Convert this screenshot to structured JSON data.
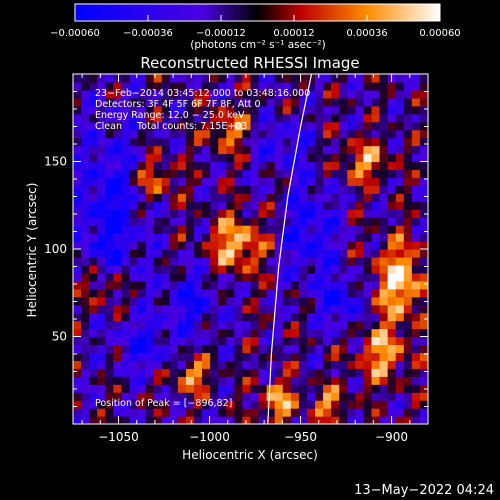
{
  "chart_data": {
    "type": "heatmap",
    "title": "Reconstructed RHESSI Image",
    "xlabel": "Heliocentric X (arcsec)",
    "ylabel": "Heliocentric Y (arcsec)",
    "xlim": [
      -1075,
      -880
    ],
    "ylim": [
      0,
      200
    ],
    "x_ticks": [
      -1050,
      -1000,
      -950,
      -900
    ],
    "x_tick_labels": [
      "−1050",
      "−1000",
      "−950",
      "−900"
    ],
    "y_ticks": [
      50,
      100,
      150
    ],
    "y_tick_labels": [
      "50",
      "100",
      "150"
    ],
    "colorbar": {
      "range": [
        -0.0006,
        0.0006
      ],
      "ticks": [
        -0.0006,
        -0.00036,
        -0.00012,
        0.00012,
        0.00036,
        0.0006
      ],
      "tick_labels": [
        "−0.00060",
        "−0.00036",
        "−0.00012",
        "0.00012",
        "0.00036",
        "0.00060"
      ],
      "label": "(photons cm⁻² s⁻¹ asec⁻²)"
    },
    "annotations": [
      "23−Feb−2014 03:45:12.000 to 03:48:16.000",
      "Detectors: 3F 4F 5F 6F 7F 8F, Att 0",
      "Energy Range: 12.0 − 25.0 keV",
      "Clean     Total counts: 7.15E+03"
    ],
    "peak_label": "Position of Peak = [−896,82]",
    "limb_line": [
      [
        -968,
        0
      ],
      [
        -966,
        40
      ],
      [
        -962,
        90
      ],
      [
        -957,
        130
      ],
      [
        -950,
        170
      ],
      [
        -944,
        200
      ]
    ],
    "hot_spots": [
      {
        "x": -985,
        "y": 103,
        "w": 14,
        "h": 16,
        "value": 0.00055
      },
      {
        "x": -895,
        "y": 82,
        "w": 14,
        "h": 22,
        "value": 0.0006
      },
      {
        "x": -963,
        "y": 13,
        "w": 10,
        "h": 12,
        "value": 0.00048
      },
      {
        "x": -1058,
        "y": 78,
        "w": 12,
        "h": 14,
        "value": 0.00042
      },
      {
        "x": -1010,
        "y": 28,
        "w": 10,
        "h": 10,
        "value": 0.00045
      },
      {
        "x": -990,
        "y": 168,
        "w": 12,
        "h": 12,
        "value": 0.0004
      },
      {
        "x": -915,
        "y": 150,
        "w": 14,
        "h": 12,
        "value": 0.00042
      },
      {
        "x": -905,
        "y": 40,
        "w": 14,
        "h": 16,
        "value": 0.00046
      },
      {
        "x": -1030,
        "y": 140,
        "w": 12,
        "h": 12,
        "value": 0.00038
      },
      {
        "x": -935,
        "y": 12,
        "w": 10,
        "h": 10,
        "value": 0.0004
      }
    ],
    "cold_spots": [
      {
        "x": -1055,
        "y": 120,
        "w": 18,
        "h": 50,
        "value": -0.00045
      },
      {
        "x": -1010,
        "y": 70,
        "w": 16,
        "h": 18,
        "value": -0.00035
      },
      {
        "x": -945,
        "y": 110,
        "w": 14,
        "h": 30,
        "value": -0.0004
      },
      {
        "x": -928,
        "y": 70,
        "w": 10,
        "h": 14,
        "value": -0.00045
      },
      {
        "x": -960,
        "y": 160,
        "w": 14,
        "h": 14,
        "value": -0.0003
      },
      {
        "x": -1035,
        "y": 45,
        "w": 14,
        "h": 14,
        "value": -0.00035
      }
    ]
  },
  "footer": {
    "timestamp": "13−May−2022 04:24"
  }
}
